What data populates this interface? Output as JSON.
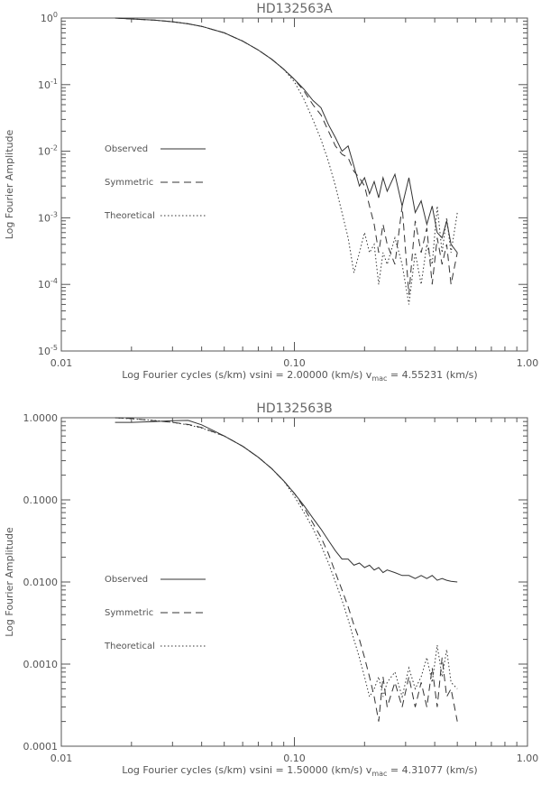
{
  "chart_data": [
    {
      "type": "line",
      "title": "HD132563A",
      "xlabel": "Log Fourier cycles (s/km) vsini = 2.00000 (km/s) v",
      "xlabel_sub": "mac",
      "xlabel_tail": " = 4.55231 (km/s)",
      "ylabel": "Log Fourier Amplitude",
      "x_scale": "log",
      "y_scale": "log",
      "xlim": [
        0.01,
        1.0
      ],
      "ylim": [
        1e-05,
        1.0
      ],
      "x_ticks": [
        0.01,
        0.1,
        1.0
      ],
      "x_tick_labels": [
        "0.01",
        "0.10",
        "1.00"
      ],
      "y_ticks": [
        1e-05,
        0.0001,
        0.001,
        0.01,
        0.1,
        1.0
      ],
      "y_tick_labels": [
        {
          "base": "10",
          "exp": "-5"
        },
        {
          "base": "10",
          "exp": "-4"
        },
        {
          "base": "10",
          "exp": "-3"
        },
        {
          "base": "10",
          "exp": "-2"
        },
        {
          "base": "10",
          "exp": "-1"
        },
        {
          "base": "10",
          "exp": "0"
        }
      ],
      "legend_position": "left-middle",
      "series": [
        {
          "name": "Observed",
          "style": "solid",
          "x": [
            0.017,
            0.02,
            0.025,
            0.03,
            0.035,
            0.04,
            0.05,
            0.06,
            0.07,
            0.08,
            0.09,
            0.1,
            0.11,
            0.12,
            0.13,
            0.14,
            0.15,
            0.16,
            0.17,
            0.18,
            0.19,
            0.2,
            0.21,
            0.22,
            0.23,
            0.24,
            0.25,
            0.27,
            0.29,
            0.31,
            0.33,
            0.35,
            0.37,
            0.39,
            0.41,
            0.43,
            0.45,
            0.47,
            0.5
          ],
          "y": [
            1.0,
            0.97,
            0.93,
            0.88,
            0.82,
            0.75,
            0.6,
            0.45,
            0.33,
            0.24,
            0.17,
            0.12,
            0.085,
            0.058,
            0.045,
            0.025,
            0.016,
            0.01,
            0.012,
            0.006,
            0.003,
            0.004,
            0.0023,
            0.0035,
            0.002,
            0.004,
            0.0025,
            0.0045,
            0.0015,
            0.004,
            0.0012,
            0.0018,
            0.0008,
            0.0015,
            0.0006,
            0.0005,
            0.0009,
            0.0004,
            0.0003
          ]
        },
        {
          "name": "Symmetric",
          "style": "dashed",
          "x": [
            0.017,
            0.02,
            0.025,
            0.03,
            0.035,
            0.04,
            0.05,
            0.06,
            0.07,
            0.08,
            0.09,
            0.1,
            0.11,
            0.12,
            0.13,
            0.14,
            0.15,
            0.16,
            0.17,
            0.18,
            0.19,
            0.2,
            0.21,
            0.22,
            0.23,
            0.24,
            0.25,
            0.27,
            0.29,
            0.31,
            0.33,
            0.35,
            0.37,
            0.39,
            0.41,
            0.43,
            0.45,
            0.47,
            0.5
          ],
          "y": [
            1.0,
            0.97,
            0.93,
            0.88,
            0.82,
            0.75,
            0.6,
            0.45,
            0.33,
            0.24,
            0.17,
            0.12,
            0.08,
            0.05,
            0.035,
            0.02,
            0.012,
            0.009,
            0.008,
            0.005,
            0.004,
            0.003,
            0.0015,
            0.0008,
            0.0003,
            0.0008,
            0.0004,
            0.0002,
            0.0015,
            7e-05,
            0.0009,
            0.0003,
            0.0007,
            0.0001,
            0.0005,
            0.0002,
            0.0004,
            0.0001,
            0.0003
          ]
        },
        {
          "name": "Theoretical",
          "style": "dotted",
          "x": [
            0.017,
            0.02,
            0.025,
            0.03,
            0.035,
            0.04,
            0.05,
            0.06,
            0.07,
            0.08,
            0.09,
            0.1,
            0.11,
            0.12,
            0.13,
            0.14,
            0.15,
            0.16,
            0.17,
            0.18,
            0.19,
            0.2,
            0.21,
            0.22,
            0.23,
            0.24,
            0.25,
            0.27,
            0.29,
            0.31,
            0.33,
            0.35,
            0.37,
            0.39,
            0.41,
            0.43,
            0.45,
            0.47,
            0.5
          ],
          "y": [
            1.0,
            0.97,
            0.93,
            0.88,
            0.82,
            0.75,
            0.6,
            0.45,
            0.33,
            0.24,
            0.17,
            0.11,
            0.06,
            0.03,
            0.015,
            0.007,
            0.003,
            0.0012,
            0.0005,
            0.00015,
            0.0003,
            0.0006,
            0.0003,
            0.0004,
            0.0001,
            0.0003,
            0.0002,
            0.0005,
            0.0002,
            5e-05,
            0.0003,
            0.0001,
            0.0004,
            0.0002,
            0.0015,
            0.0003,
            0.001,
            0.0003,
            0.0012
          ]
        }
      ]
    },
    {
      "type": "line",
      "title": "HD132563B",
      "xlabel": "Log Fourier cycles (s/km) vsini = 1.50000 (km/s) v",
      "xlabel_sub": "mac",
      "xlabel_tail": " = 4.31077 (km/s)",
      "ylabel": "Log Fourier Amplitude",
      "x_scale": "log",
      "y_scale": "log",
      "xlim": [
        0.01,
        1.0
      ],
      "ylim": [
        0.0001,
        1.0
      ],
      "x_ticks": [
        0.01,
        0.1,
        1.0
      ],
      "x_tick_labels": [
        "0.01",
        "0.10",
        "1.00"
      ],
      "y_ticks": [
        0.0001,
        0.001,
        0.01,
        0.1,
        1.0
      ],
      "y_tick_labels": [
        "0.0001",
        "0.0010",
        "0.0100",
        "0.1000",
        "1.0000"
      ],
      "legend_position": "left-middle",
      "series": [
        {
          "name": "Observed",
          "style": "solid",
          "x": [
            0.017,
            0.02,
            0.025,
            0.03,
            0.035,
            0.04,
            0.05,
            0.06,
            0.07,
            0.08,
            0.09,
            0.1,
            0.11,
            0.12,
            0.13,
            0.14,
            0.15,
            0.16,
            0.17,
            0.18,
            0.19,
            0.2,
            0.21,
            0.22,
            0.23,
            0.24,
            0.25,
            0.27,
            0.29,
            0.31,
            0.33,
            0.35,
            0.37,
            0.39,
            0.41,
            0.43,
            0.45,
            0.47,
            0.5
          ],
          "y": [
            0.88,
            0.88,
            0.9,
            0.92,
            0.93,
            0.82,
            0.6,
            0.45,
            0.33,
            0.24,
            0.17,
            0.12,
            0.085,
            0.06,
            0.044,
            0.032,
            0.024,
            0.019,
            0.019,
            0.016,
            0.017,
            0.015,
            0.016,
            0.014,
            0.015,
            0.013,
            0.014,
            0.013,
            0.012,
            0.012,
            0.011,
            0.012,
            0.011,
            0.012,
            0.0105,
            0.011,
            0.0105,
            0.0102,
            0.01
          ]
        },
        {
          "name": "Symmetric",
          "style": "dashed",
          "x": [
            0.017,
            0.02,
            0.025,
            0.03,
            0.035,
            0.04,
            0.05,
            0.06,
            0.07,
            0.08,
            0.09,
            0.1,
            0.11,
            0.12,
            0.13,
            0.14,
            0.15,
            0.16,
            0.17,
            0.18,
            0.19,
            0.2,
            0.21,
            0.22,
            0.23,
            0.24,
            0.25,
            0.27,
            0.29,
            0.31,
            0.33,
            0.35,
            0.37,
            0.39,
            0.41,
            0.43,
            0.45,
            0.47,
            0.5
          ],
          "y": [
            1.0,
            0.98,
            0.92,
            0.88,
            0.83,
            0.76,
            0.6,
            0.45,
            0.33,
            0.24,
            0.17,
            0.12,
            0.08,
            0.052,
            0.035,
            0.022,
            0.013,
            0.008,
            0.005,
            0.003,
            0.002,
            0.0012,
            0.0007,
            0.0004,
            0.0002,
            0.0007,
            0.0003,
            0.0006,
            0.0003,
            0.0007,
            0.0003,
            0.0006,
            0.0003,
            0.0009,
            0.0003,
            0.0012,
            0.0004,
            0.0005,
            0.0002
          ]
        },
        {
          "name": "Theoretical",
          "style": "dotted",
          "x": [
            0.017,
            0.02,
            0.025,
            0.03,
            0.035,
            0.04,
            0.05,
            0.06,
            0.07,
            0.08,
            0.09,
            0.1,
            0.11,
            0.12,
            0.13,
            0.14,
            0.15,
            0.16,
            0.17,
            0.18,
            0.19,
            0.2,
            0.21,
            0.22,
            0.23,
            0.24,
            0.25,
            0.27,
            0.29,
            0.31,
            0.33,
            0.35,
            0.37,
            0.39,
            0.41,
            0.43,
            0.45,
            0.47,
            0.5
          ],
          "y": [
            1.0,
            0.97,
            0.93,
            0.88,
            0.82,
            0.75,
            0.6,
            0.45,
            0.33,
            0.24,
            0.17,
            0.11,
            0.07,
            0.045,
            0.028,
            0.017,
            0.01,
            0.006,
            0.0035,
            0.002,
            0.0012,
            0.0007,
            0.0004,
            0.0005,
            0.0007,
            0.0004,
            0.0006,
            0.0008,
            0.0004,
            0.0009,
            0.0005,
            0.0007,
            0.0012,
            0.0006,
            0.0017,
            0.0007,
            0.0015,
            0.0006,
            0.0005
          ]
        }
      ]
    }
  ]
}
